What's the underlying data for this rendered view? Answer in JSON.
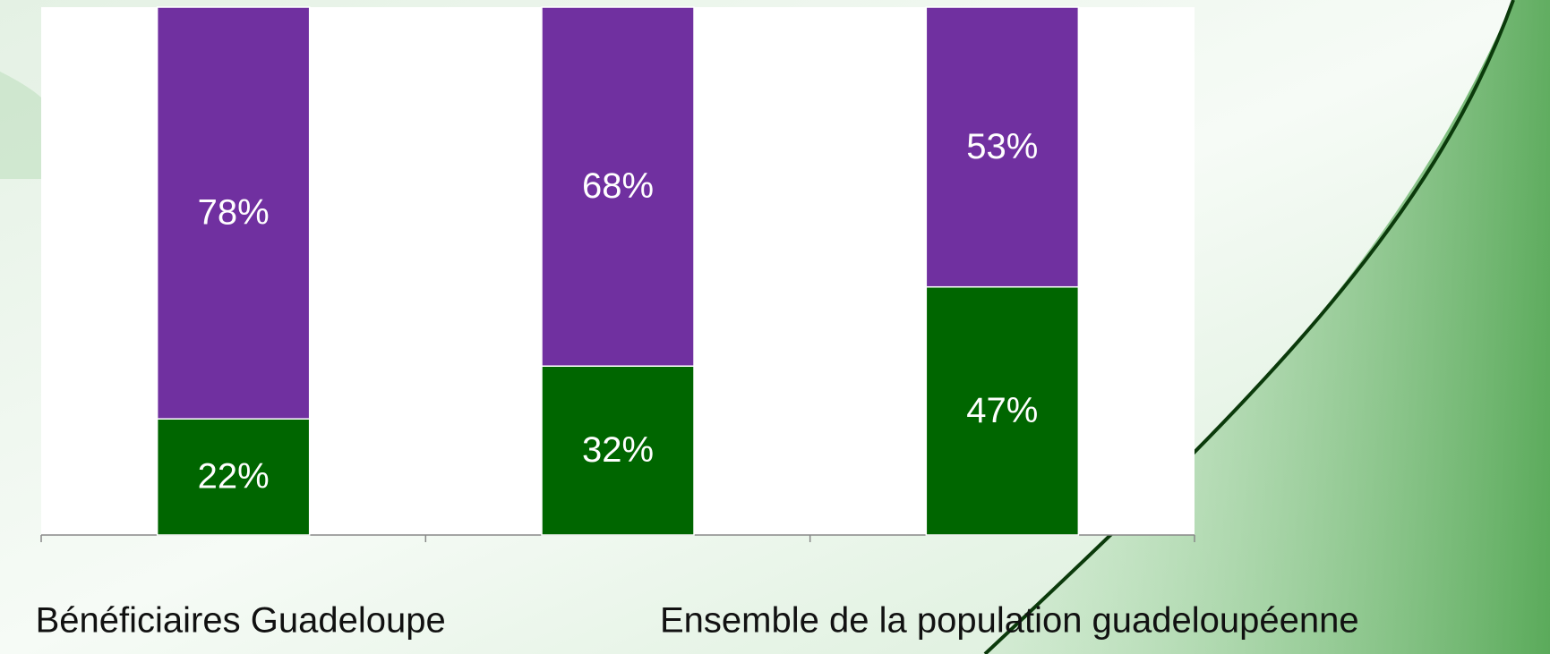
{
  "chart_data": {
    "type": "stacked_bar",
    "categories": [
      "Bénéficiaires Guadeloupe",
      null,
      "Ensemble de la population guadeloupéenne"
    ],
    "series": [
      {
        "color": "#006600",
        "values": [
          22,
          32,
          47
        ],
        "value_labels": [
          "22%",
          "32%",
          "47%"
        ]
      },
      {
        "color": "#7030a0",
        "values": [
          78,
          68,
          53
        ],
        "value_labels": [
          "78%",
          "68%",
          "53%"
        ]
      }
    ],
    "ylim": [
      0,
      100
    ]
  }
}
